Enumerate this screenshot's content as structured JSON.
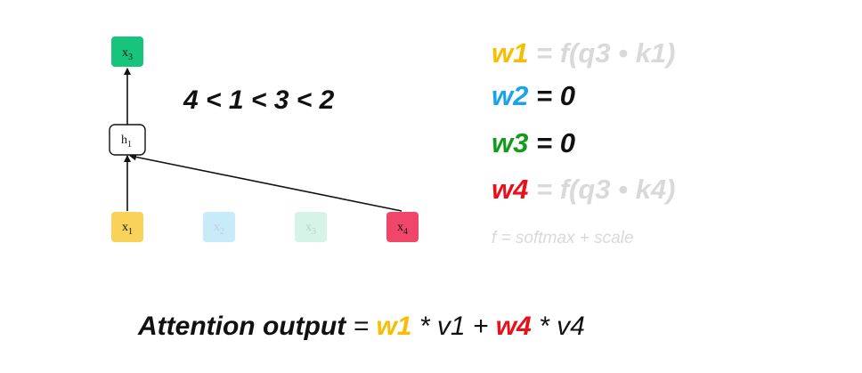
{
  "colors": {
    "x1": "#f9d25a",
    "x2": "#c8ebfa",
    "x3_input": "#d5f3e6",
    "x4": "#f0466a",
    "x3_output": "#18c47c",
    "w1": "#f7bd00",
    "w2": "#1aa3e8",
    "w3": "#119a1c",
    "w4": "#e8101a",
    "muted": "#d9d9d9"
  },
  "nodes": {
    "output": {
      "var": "x",
      "sub": "3"
    },
    "hidden": {
      "var": "h",
      "sub": "1"
    },
    "inputs": [
      {
        "var": "x",
        "sub": "1"
      },
      {
        "var": "x",
        "sub": "2"
      },
      {
        "var": "x",
        "sub": "3"
      },
      {
        "var": "x",
        "sub": "4"
      }
    ]
  },
  "order": "4 < 1 < 3 < 2",
  "equations": [
    {
      "w": "w1",
      "rest": " = f(q3 • k1)"
    },
    {
      "w": "w2",
      "rest": " = 0"
    },
    {
      "w": "w3",
      "rest": " = 0"
    },
    {
      "w": "w4",
      "rest": " = f(q3 • k4)"
    }
  ],
  "note": "f = softmax + scale",
  "output_eq": {
    "label": "Attention output",
    "eq": " = ",
    "w1": "w1",
    "t1": " * v1 + ",
    "w4": "w4",
    "t2": " * v4"
  }
}
